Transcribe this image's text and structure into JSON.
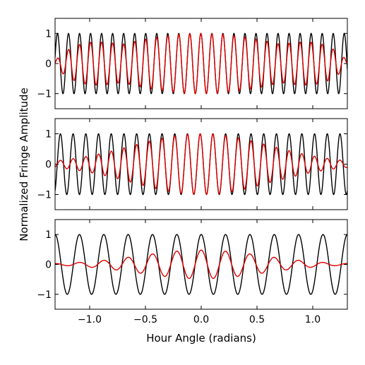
{
  "chart_data": {
    "type": "line",
    "xlabel": "Hour Angle (radians)",
    "ylabel": "Normalized Fringe Amplitude",
    "xlim": [
      -1.31,
      1.31
    ],
    "ylim": [
      -1.5,
      1.5
    ],
    "x_ticks": [
      -1.0,
      -0.5,
      0.0,
      0.5,
      1.0
    ],
    "x_tick_labels": [
      "−1.0",
      "−0.5",
      "0.0",
      "0.5",
      "1.0"
    ],
    "y_ticks": [
      1,
      0,
      -1
    ],
    "y_tick_labels": [
      "1",
      "0",
      "−1"
    ],
    "colors": {
      "black": "#000000",
      "red": "#e00000"
    },
    "panels": [
      {
        "series": [
          {
            "color": "black",
            "function": "cos",
            "cycles_over_range": 26.5,
            "phase": 0.2,
            "envelope": "none"
          },
          {
            "color": "red",
            "function": "cos",
            "cycles_over_range": 26.5,
            "phase": 0.2,
            "envelope": "gaussian_beat",
            "width": 0.32,
            "baseline": 0.65
          }
        ]
      },
      {
        "series": [
          {
            "color": "black",
            "function": "cos",
            "cycles_over_range": 23.0,
            "phase": 0.5,
            "envelope": "none"
          },
          {
            "color": "red",
            "function": "cos",
            "cycles_over_range": 23.0,
            "phase": 0.5,
            "envelope": "gaussian",
            "width": 0.62
          }
        ]
      },
      {
        "series": [
          {
            "color": "black",
            "function": "cos",
            "cycles_over_range": 12.0,
            "phase": 0.0,
            "envelope": "none"
          },
          {
            "color": "red",
            "function": "cos",
            "cycles_over_range": 12.0,
            "phase": 0.0,
            "envelope": "gaussian",
            "width": 0.55,
            "peak": 0.48
          }
        ]
      }
    ]
  }
}
